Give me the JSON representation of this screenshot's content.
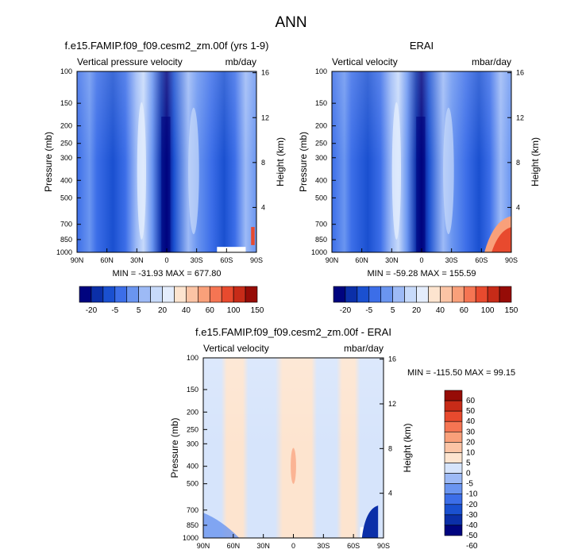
{
  "page": {
    "title": "ANN"
  },
  "colors": {
    "cb1": [
      "#00047f",
      "#0b2fa8",
      "#1a50d0",
      "#3c6ee8",
      "#6a95f0",
      "#9dbaf6",
      "#c7dafa",
      "#e4edfc",
      "#fde4cf",
      "#fbc4a5",
      "#f9a07a",
      "#f57553",
      "#e84a2e",
      "#c72b18",
      "#960c07"
    ],
    "cb3": [
      "#00047f",
      "#0b2fa8",
      "#1a50d0",
      "#3c6ee8",
      "#6a95f0",
      "#9dbaf6",
      "#d6e4fb",
      "#fde4cf",
      "#fbc4a5",
      "#f9a07a",
      "#f57553",
      "#e84a2e",
      "#c72b18",
      "#960c07"
    ]
  },
  "chart_data": [
    {
      "type": "heatmap",
      "title": "f.e15.FAMIP.f09_f09.cesm2_zm.00f (yrs 1-9)",
      "left_label": "Vertical pressure velocity",
      "right_label": "mb/day",
      "ylabel": "Pressure (mb)",
      "y2label": "Height (km)",
      "xticks": [
        "90N",
        "60N",
        "30N",
        "0",
        "30S",
        "60S",
        "90S"
      ],
      "yticks": [
        "100",
        "150",
        "200",
        "250",
        "300",
        "400",
        "500",
        "700",
        "850",
        "1000"
      ],
      "y2ticks": [
        "16",
        "12",
        "8",
        "4"
      ],
      "minmax": "MIN = -31.93  MAX = 677.80",
      "colorbar_labels": [
        "-20",
        "-5",
        "5",
        "20",
        "40",
        "60",
        "100",
        "150"
      ]
    },
    {
      "type": "heatmap",
      "title": "ERAI",
      "left_label": "Vertical velocity",
      "right_label": "mbar/day",
      "ylabel": "Pressure (mb)",
      "y2label": "Height (km)",
      "xticks": [
        "90N",
        "60N",
        "30N",
        "0",
        "30S",
        "60S",
        "90S"
      ],
      "yticks": [
        "100",
        "150",
        "200",
        "250",
        "300",
        "400",
        "500",
        "700",
        "850",
        "1000"
      ],
      "y2ticks": [
        "16",
        "12",
        "8",
        "4"
      ],
      "minmax": "MIN = -59.28  MAX = 155.59",
      "colorbar_labels": [
        "-20",
        "-5",
        "5",
        "20",
        "40",
        "60",
        "100",
        "150"
      ]
    },
    {
      "type": "heatmap",
      "title": "f.e15.FAMIP.f09_f09.cesm2_zm.00f - ERAI",
      "left_label": "Vertical velocity",
      "right_label": "mbar/day",
      "ylabel": "Pressure (mb)",
      "y2label": "Height (km)",
      "xticks": [
        "90N",
        "60N",
        "30N",
        "0",
        "30S",
        "60S",
        "90S"
      ],
      "yticks": [
        "100",
        "150",
        "200",
        "250",
        "300",
        "400",
        "500",
        "700",
        "850",
        "1000"
      ],
      "y2ticks": [
        "16",
        "12",
        "8",
        "4"
      ],
      "minmax": "MIN = -115.50  MAX = 99.15",
      "colorbar_labels": [
        "60",
        "50",
        "40",
        "30",
        "20",
        "10",
        "5",
        "0",
        "-5",
        "-10",
        "-20",
        "-30",
        "-40",
        "-50",
        "-60"
      ]
    }
  ]
}
